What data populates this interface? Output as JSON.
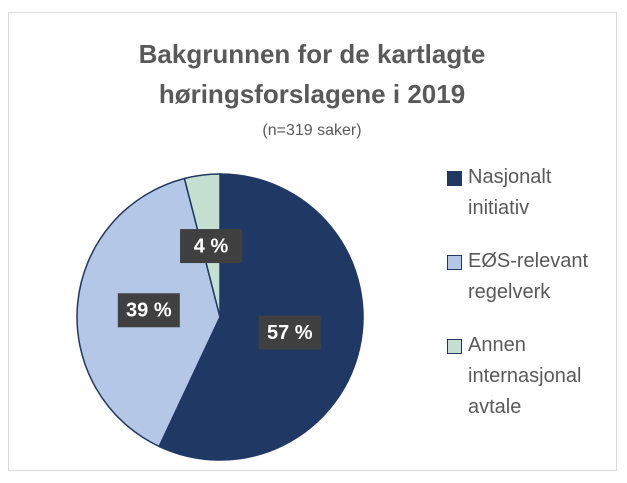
{
  "chart_data": {
    "type": "pie",
    "title": [
      "Bakgrunnen for de kartlagte",
      "høringsforslagene i 2019"
    ],
    "subtitle": "(n=319 saker)",
    "categories": [
      "Nasjonalt initiativ",
      "EØS-relevant regelverk",
      "Annen internasjonal avtale"
    ],
    "values": [
      57,
      39,
      4
    ],
    "value_labels": [
      "57 %",
      "39 %",
      "4 %"
    ],
    "colors": [
      "#203864",
      "#b4c7e7",
      "#c5e0d0"
    ],
    "legend": "right"
  }
}
